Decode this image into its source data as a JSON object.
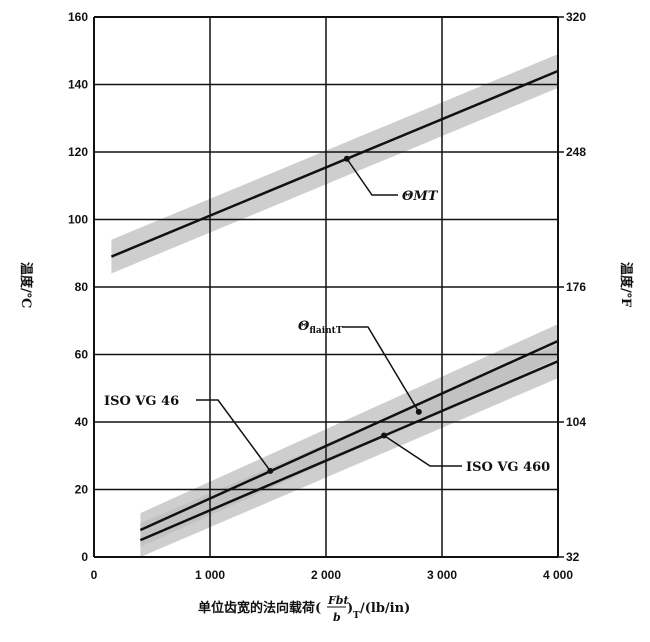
{
  "chart_data": {
    "type": "line",
    "xlabel": "单位齿宽的法向载荷(Fbt/b)T/(lb/in)",
    "xlabel_parts": {
      "prefix": "单位齿宽的法向载荷(",
      "numerator": "Fbt",
      "denominator": "b",
      "suffix": ")",
      "subscript": "T",
      "unit": "/(lb/in)"
    },
    "ylabel": "温度/℃",
    "ylabel_right": "温度/℉",
    "xlim": [
      0,
      4000
    ],
    "ylim": [
      0,
      160
    ],
    "ylim_right": [
      32,
      320
    ],
    "x_ticks": [
      "0",
      "1 000",
      "2 000",
      "3 000",
      "4 000"
    ],
    "y_ticks": [
      "0",
      "20",
      "40",
      "60",
      "80",
      "100",
      "120",
      "140",
      "160"
    ],
    "y_ticks_right": [
      "32",
      "104",
      "176",
      "248",
      "320"
    ],
    "grid": true,
    "series": [
      {
        "name": "ΘMT",
        "x": [
          150,
          4000
        ],
        "y": [
          89,
          144
        ],
        "band": 5
      },
      {
        "name": "ISO VG 46",
        "x": [
          400,
          4000
        ],
        "y": [
          8,
          64
        ],
        "band": 5
      },
      {
        "name": "ISO VG 460",
        "x": [
          400,
          4000
        ],
        "y": [
          5,
          58
        ],
        "band": 5
      }
    ],
    "annotations": [
      {
        "text": "ΘMT",
        "main": "Θ",
        "sub": "MT",
        "at": [
          2180,
          118
        ]
      },
      {
        "text": "ΘflaintT",
        "main": "Θ",
        "sub": "flaintT",
        "at": [
          2800,
          43
        ]
      },
      {
        "text": "ISO VG 46",
        "at": [
          1520,
          25.5
        ]
      },
      {
        "text": "ISO VG 460",
        "at": [
          2500,
          36
        ]
      }
    ],
    "colors": {
      "line": "#111111",
      "band": "#bdbdbd",
      "grid": "#111111"
    }
  }
}
